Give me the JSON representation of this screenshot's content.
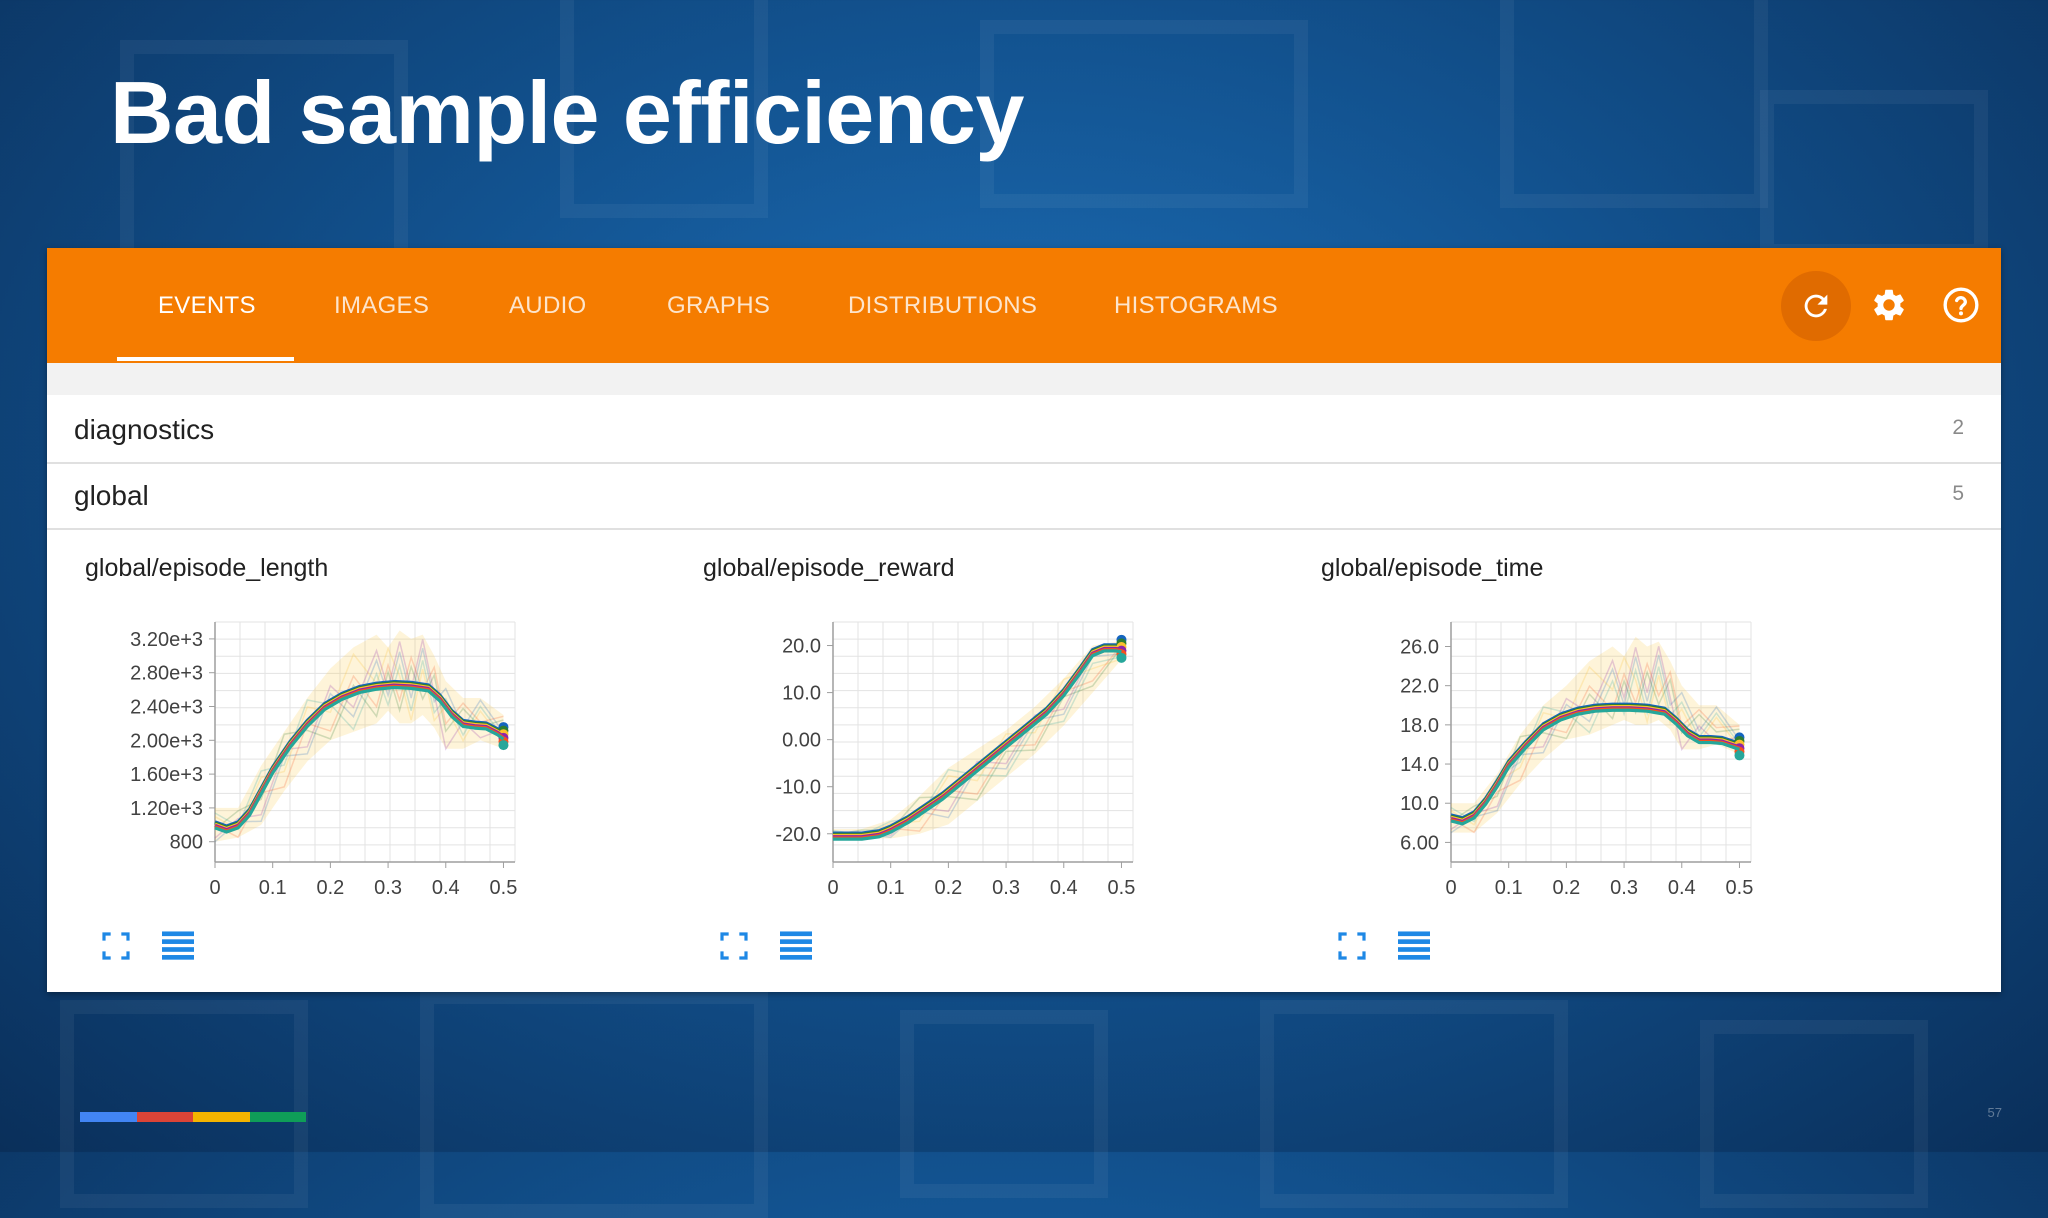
{
  "slide": {
    "title": "Bad sample efficiency",
    "page_number": "57"
  },
  "toolbar": {
    "tabs": [
      "EVENTS",
      "IMAGES",
      "AUDIO",
      "GRAPHS",
      "DISTRIBUTIONS",
      "HISTOGRAMS"
    ],
    "active_tab": "EVENTS",
    "icons": [
      "refresh-icon",
      "gear-icon",
      "help-icon"
    ],
    "accent_color": "#f57c00"
  },
  "categories": [
    {
      "label": "diagnostics",
      "count": "2"
    },
    {
      "label": "global",
      "count": "5"
    }
  ],
  "chart_data": [
    {
      "type": "line",
      "title": "global/episode_length",
      "xlim": [
        0,
        0.52
      ],
      "ylim": [
        560,
        3400
      ],
      "xticks": [
        0,
        0.1,
        0.2,
        0.3,
        0.4,
        0.5
      ],
      "xtick_labels": [
        "0",
        "0.1",
        "0.2",
        "0.3",
        "0.4",
        "0.5"
      ],
      "yticks": [
        800,
        1200,
        1600,
        2000,
        2400,
        2800,
        3200
      ],
      "ytick_labels": [
        "800",
        "1.20e+3",
        "1.60e+3",
        "2.00e+3",
        "2.40e+3",
        "2.80e+3",
        "3.20e+3"
      ],
      "grid": true,
      "smoothed": {
        "x": [
          0,
          0.02,
          0.04,
          0.06,
          0.08,
          0.1,
          0.13,
          0.16,
          0.19,
          0.22,
          0.25,
          0.28,
          0.31,
          0.34,
          0.37,
          0.39,
          0.41,
          0.43,
          0.45,
          0.47,
          0.49,
          0.5
        ],
        "y": [
          1000,
          950,
          1000,
          1150,
          1400,
          1650,
          1950,
          2200,
          2400,
          2520,
          2600,
          2640,
          2660,
          2650,
          2620,
          2500,
          2320,
          2200,
          2180,
          2170,
          2100,
          2050
        ]
      },
      "raw_band": {
        "x": [
          0,
          0.04,
          0.08,
          0.12,
          0.16,
          0.2,
          0.24,
          0.28,
          0.3,
          0.32,
          0.34,
          0.36,
          0.38,
          0.4,
          0.43,
          0.46,
          0.5
        ],
        "y_low": [
          800,
          850,
          1000,
          1400,
          1750,
          2000,
          2100,
          2200,
          2350,
          2200,
          2200,
          2300,
          2150,
          1900,
          1900,
          2000,
          1900
        ],
        "y_high": [
          1200,
          1200,
          1700,
          2100,
          2500,
          2850,
          3100,
          3250,
          3100,
          3300,
          3200,
          3250,
          3000,
          2700,
          2500,
          2500,
          2300
        ]
      },
      "series_colors": [
        "#1565c0",
        "#2e7d32",
        "#fbc02d",
        "#8e24aa",
        "#f4511e",
        "#26a69a"
      ]
    },
    {
      "type": "line",
      "title": "global/episode_reward",
      "xlim": [
        0,
        0.52
      ],
      "ylim": [
        -26,
        25
      ],
      "xticks": [
        0,
        0.1,
        0.2,
        0.3,
        0.4,
        0.5
      ],
      "xtick_labels": [
        "0",
        "0.1",
        "0.2",
        "0.3",
        "0.4",
        "0.5"
      ],
      "yticks": [
        -20,
        -10,
        0,
        10,
        20
      ],
      "ytick_labels": [
        "-20.0",
        "-10.0",
        "0.00",
        "10.0",
        "20.0"
      ],
      "grid": true,
      "smoothed": {
        "x": [
          0,
          0.05,
          0.08,
          0.1,
          0.13,
          0.16,
          0.19,
          0.22,
          0.25,
          0.28,
          0.31,
          0.34,
          0.37,
          0.4,
          0.43,
          0.45,
          0.47,
          0.49,
          0.5
        ],
        "y": [
          -20.5,
          -20.5,
          -20,
          -19,
          -17,
          -14.5,
          -12,
          -9,
          -6,
          -3,
          0,
          3,
          6,
          10,
          15,
          18.5,
          19.5,
          19.5,
          19.3
        ]
      },
      "raw_band": {
        "x": [
          0,
          0.05,
          0.1,
          0.15,
          0.2,
          0.25,
          0.3,
          0.35,
          0.4,
          0.45,
          0.5
        ],
        "y_low": [
          -21,
          -21,
          -21,
          -20,
          -18,
          -13,
          -8,
          -3,
          3,
          10,
          17
        ],
        "y_high": [
          -19,
          -19,
          -17,
          -12,
          -6,
          -2,
          2,
          7,
          13,
          20,
          21
        ]
      },
      "series_colors": [
        "#1565c0",
        "#2e7d32",
        "#fbc02d",
        "#8e24aa",
        "#f4511e",
        "#26a69a"
      ]
    },
    {
      "type": "line",
      "title": "global/episode_time",
      "xlim": [
        0,
        0.52
      ],
      "ylim": [
        4,
        28.5
      ],
      "xticks": [
        0,
        0.1,
        0.2,
        0.3,
        0.4,
        0.5
      ],
      "xtick_labels": [
        "0",
        "0.1",
        "0.2",
        "0.3",
        "0.4",
        "0.5"
      ],
      "yticks": [
        6,
        10,
        14,
        18,
        22,
        26
      ],
      "ytick_labels": [
        "6.00",
        "10.0",
        "14.0",
        "18.0",
        "22.0",
        "26.0"
      ],
      "grid": true,
      "smoothed": {
        "x": [
          0,
          0.02,
          0.04,
          0.06,
          0.08,
          0.1,
          0.13,
          0.16,
          0.19,
          0.22,
          0.25,
          0.28,
          0.31,
          0.34,
          0.37,
          0.39,
          0.41,
          0.43,
          0.45,
          0.47,
          0.49,
          0.5
        ],
        "y": [
          8.5,
          8.2,
          8.8,
          10.2,
          12,
          14,
          16,
          17.8,
          18.8,
          19.4,
          19.7,
          19.8,
          19.8,
          19.7,
          19.4,
          18.4,
          17.2,
          16.5,
          16.5,
          16.4,
          16,
          15.8
        ]
      },
      "raw_band": {
        "x": [
          0,
          0.04,
          0.08,
          0.12,
          0.16,
          0.2,
          0.24,
          0.28,
          0.3,
          0.32,
          0.34,
          0.36,
          0.38,
          0.4,
          0.43,
          0.46,
          0.5
        ],
        "y_low": [
          7,
          7,
          9,
          12,
          14.5,
          16.5,
          17,
          18,
          18.5,
          18,
          18,
          18.5,
          17.5,
          15.5,
          15.5,
          16,
          15
        ],
        "y_high": [
          10,
          10,
          13,
          17,
          20,
          22,
          24.5,
          26,
          25,
          27,
          26,
          26.5,
          24.5,
          22,
          20,
          20,
          18
        ]
      },
      "series_colors": [
        "#1565c0",
        "#2e7d32",
        "#fbc02d",
        "#8e24aa",
        "#f4511e",
        "#26a69a"
      ]
    }
  ],
  "card_icons": [
    "fullscreen-icon",
    "data-table-icon"
  ],
  "brand_colors": [
    "#4285f4",
    "#db4437",
    "#f4b400",
    "#0f9d58"
  ]
}
